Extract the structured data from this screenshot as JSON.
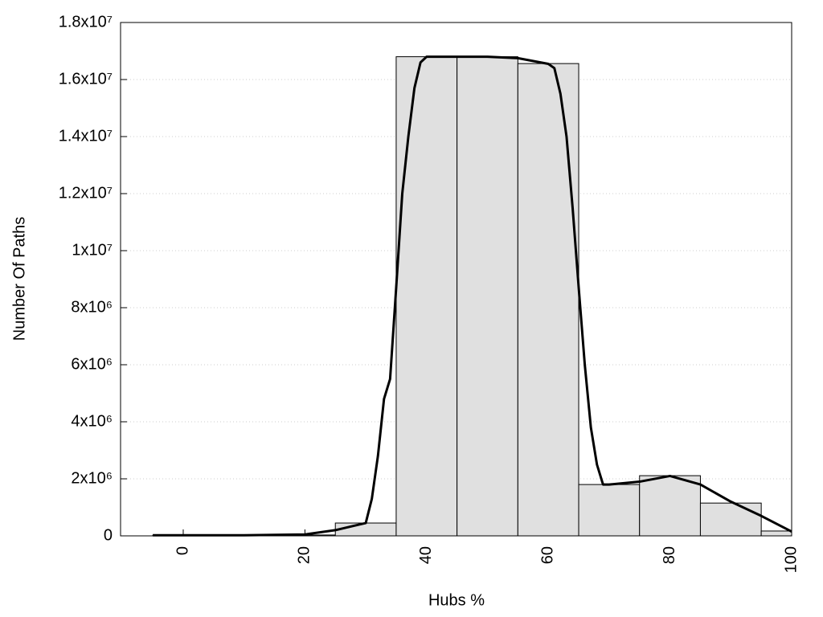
{
  "chart_data": {
    "type": "histogram",
    "x_label": "Hubs %",
    "y_label": "Number Of Paths",
    "bins": [
      -5,
      5,
      15,
      25,
      35,
      45,
      55,
      65,
      75,
      85,
      95,
      100
    ],
    "counts": [
      20000,
      20000,
      30000,
      450000,
      16800000,
      16800000,
      16560000,
      1800000,
      2110000,
      1150000,
      170000
    ],
    "color": "#e0e0e0",
    "line": {
      "color": "#000000",
      "x": [
        -5,
        0,
        10,
        20,
        25,
        28,
        30,
        31,
        32,
        33,
        34,
        35,
        36,
        37,
        38,
        39,
        40,
        45,
        50,
        55,
        60,
        61,
        62,
        63,
        64,
        65,
        66,
        67,
        68,
        69,
        70,
        75,
        80,
        85,
        90,
        95,
        100
      ],
      "values": [
        20000,
        20000,
        20000,
        50000,
        200000,
        350000,
        450000,
        1300000,
        2800000,
        4800000,
        5500000,
        8700000,
        12000000,
        14000000,
        15700000,
        16600000,
        16800000,
        16800000,
        16800000,
        16750000,
        16550000,
        16400000,
        15500000,
        14000000,
        11500000,
        8700000,
        6000000,
        3800000,
        2500000,
        1800000,
        1800000,
        1900000,
        2100000,
        1800000,
        1200000,
        700000,
        150000
      ]
    },
    "xlim": [
      -10.3,
      100
    ],
    "xticks": [
      0,
      20,
      40,
      60,
      80,
      100
    ],
    "ylim": [
      0,
      18000000
    ],
    "yticks": [
      0,
      {
        "value": 2000000,
        "label": "2x10⁶"
      },
      {
        "value": 4000000,
        "label": "4x10⁶"
      },
      {
        "value": 6000000,
        "label": "6x10⁶"
      },
      {
        "value": 8000000,
        "label": "8x10⁶"
      },
      {
        "value": 10000000,
        "label": "1x10⁷"
      },
      {
        "value": 12000000,
        "label": "1.2x10⁷"
      },
      {
        "value": 14000000,
        "label": "1.4x10⁷"
      },
      {
        "value": 16000000,
        "label": "1.6x10⁷"
      },
      {
        "value": 18000000,
        "label": "1.8x10⁷"
      }
    ],
    "grid": true
  }
}
